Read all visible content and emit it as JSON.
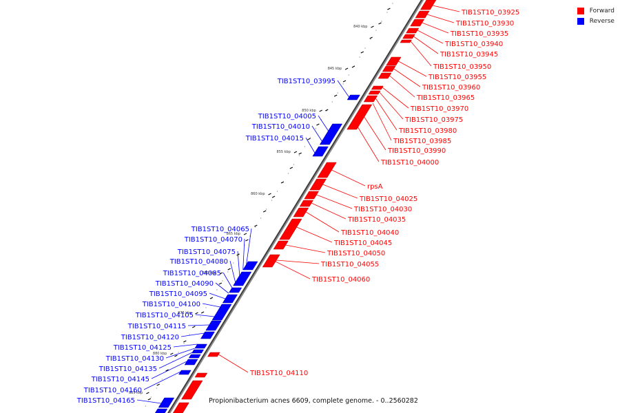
{
  "legend": {
    "forward_label": "Forward",
    "reverse_label": "Reverse",
    "forward_color": "#ff0000",
    "reverse_color": "#0000ff"
  },
  "caption": "Propionibacterium acnes 6609, complete genome. - 0..2560282",
  "ticks": [
    "840 kbp",
    "845 kbp",
    "850 kbp",
    "855 kbp",
    "860 kbp",
    "865 kbp",
    "870 kbp",
    "875 kbp",
    "880 kbp",
    "885 kbp"
  ],
  "forward_genes": [
    "TIB1ST10_03925",
    "TIB1ST10_03930",
    "TIB1ST10_03935",
    "TIB1ST10_03940",
    "TIB1ST10_03945",
    "TIB1ST10_03950",
    "TIB1ST10_03955",
    "TIB1ST10_03960",
    "TIB1ST10_03965",
    "TIB1ST10_03970",
    "TIB1ST10_03975",
    "TIB1ST10_03980",
    "TIB1ST10_03985",
    "TIB1ST10_03990",
    "TIB1ST10_04000",
    "rpsA",
    "TIB1ST10_04025",
    "TIB1ST10_04030",
    "TIB1ST10_04035",
    "TIB1ST10_04040",
    "TIB1ST10_04045",
    "TIB1ST10_04050",
    "TIB1ST10_04055",
    "TIB1ST10_04060",
    "TIB1ST10_04110"
  ],
  "reverse_genes": [
    "TIB1ST10_03995",
    "TIB1ST10_04005",
    "TIB1ST10_04010",
    "TIB1ST10_04015",
    "TIB1ST10_04065",
    "TIB1ST10_04070",
    "TIB1ST10_04075",
    "TIB1ST10_04080",
    "TIB1ST10_04085",
    "TIB1ST10_04090",
    "TIB1ST10_04095",
    "TIB1ST10_04100",
    "TIB1ST10_04105",
    "TIB1ST10_04115",
    "TIB1ST10_04120",
    "TIB1ST10_04125",
    "TIB1ST10_04130",
    "TIB1ST10_04135",
    "TIB1ST10_04145",
    "TIB1ST10_04160",
    "TIB1ST10_04165"
  ]
}
